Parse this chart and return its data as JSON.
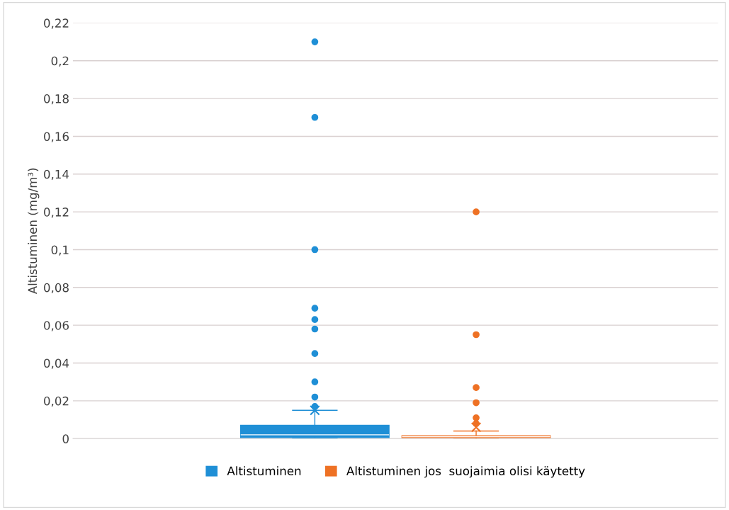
{
  "chart_data": {
    "type": "box",
    "ylabel": "Altistuminen (mg/m³)",
    "categories": [
      null
    ],
    "series": [
      {
        "name": "Altistuminen",
        "color": "#1f8fd6",
        "boxes": [
          {
            "low": 0.0003,
            "q1": 0.0005,
            "median": 0.002,
            "q3": 0.007,
            "high": 0.015,
            "mean": 0.015,
            "outliers": [
              0.017,
              0.022,
              0.03,
              0.045,
              0.058,
              0.063,
              0.069,
              0.1,
              0.17,
              0.21
            ]
          }
        ]
      },
      {
        "name": "Altistuminen jos  suojaimia olisi käytetty",
        "color": "#ee7124",
        "boxes": [
          {
            "low": 0.0,
            "q1": 0.0005,
            "median": 0.001,
            "q3": 0.0015,
            "high": 0.004,
            "mean": 0.006,
            "outliers": [
              0.008,
              0.011,
              0.019,
              0.027,
              0.055,
              0.12
            ]
          }
        ]
      }
    ],
    "ylim": [
      0,
      0.22
    ],
    "yticks": [
      0,
      {
        "value": 0.02,
        "label": "0,02"
      },
      {
        "value": 0.04,
        "label": "0,04"
      },
      {
        "value": 0.06,
        "label": "0,06"
      },
      {
        "value": 0.08,
        "label": "0,08"
      },
      {
        "value": 0.1,
        "label": "0,1"
      },
      {
        "value": 0.12,
        "label": "0,12"
      },
      {
        "value": 0.14,
        "label": "0,14"
      },
      {
        "value": 0.16,
        "label": "0,16"
      },
      {
        "value": 0.18,
        "label": "0,18"
      },
      {
        "value": 0.2,
        "label": "0,2"
      },
      {
        "value": 0.22,
        "label": "0,22"
      }
    ],
    "grid": "y",
    "legend": "bottom",
    "tick_labels": "y"
  }
}
